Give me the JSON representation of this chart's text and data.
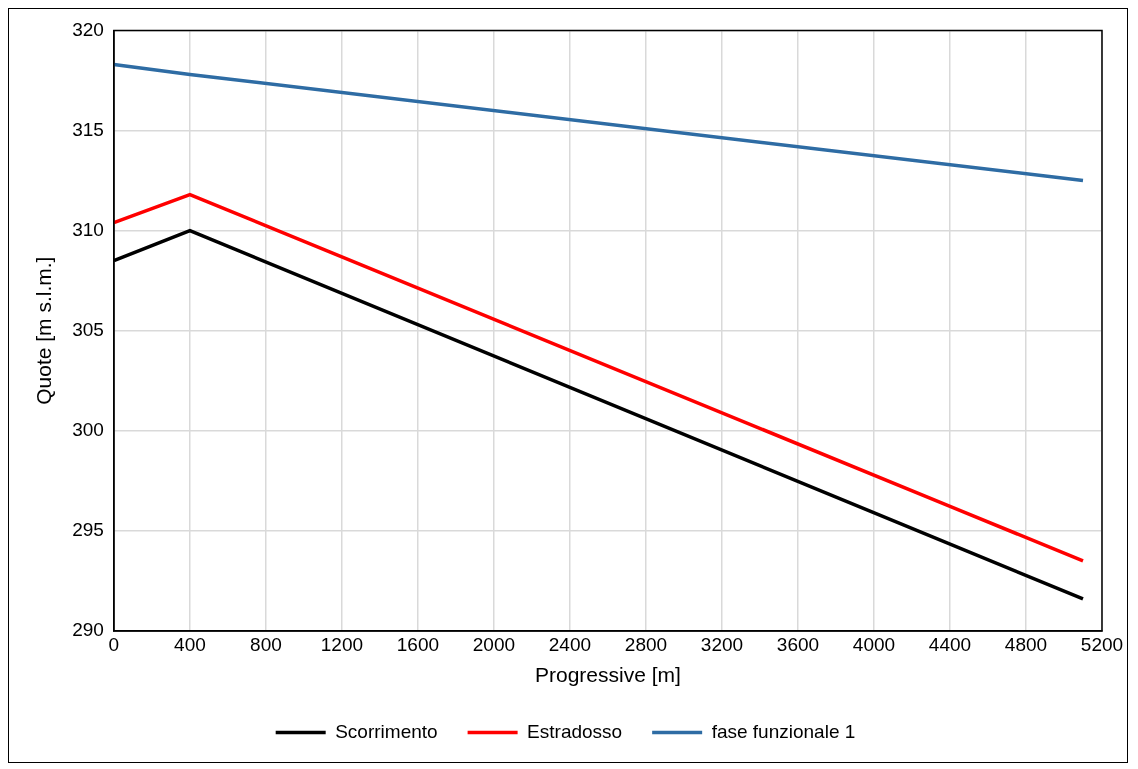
{
  "chart_data": {
    "type": "line",
    "xlabel": "Progressive [m]",
    "ylabel": "Quote [m s.l.m.]",
    "x": [
      0,
      400,
      5100
    ],
    "series": [
      {
        "name": "Scorrimento",
        "color": "#000000",
        "values": [
          308.5,
          310.0,
          291.6
        ]
      },
      {
        "name": "Estradosso",
        "color": "#ff0000",
        "values": [
          310.4,
          311.8,
          293.5
        ]
      },
      {
        "name": "fase funzionale 1",
        "color": "#2e6ca4",
        "values": [
          318.3,
          317.8,
          312.5
        ]
      }
    ],
    "xlim": [
      0,
      5200
    ],
    "xticks": [
      0,
      400,
      800,
      1200,
      1600,
      2000,
      2400,
      2800,
      3200,
      3600,
      4000,
      4400,
      4800,
      5200
    ],
    "ylim": [
      290,
      320
    ],
    "yticks": [
      290,
      295,
      300,
      305,
      310,
      315,
      320
    ],
    "grid": true,
    "legend": "bottom",
    "marker": "none",
    "line_style": "solid"
  }
}
